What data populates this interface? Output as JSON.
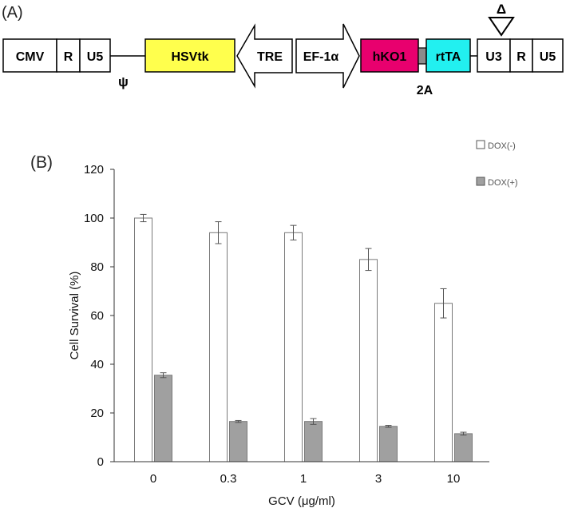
{
  "panel_a": {
    "label": "(A)",
    "segments": {
      "cmv": "CMV",
      "r_left": "R",
      "u5_left": "U5",
      "psi": "ψ",
      "hsvtk": "HSVtk",
      "tre": "TRE",
      "ef1a": "EF-1α",
      "hko1": "hKO1",
      "linker_2a": "2A",
      "rtta": "rtTA",
      "u3": "U3",
      "r_right": "R",
      "u5_right": "U5",
      "delta": "Δ"
    },
    "colors": {
      "hsvtk": "#ffff4d",
      "hko1": "#e8006e",
      "rtta": "#22f0f0",
      "linker": "#8c8c8c"
    }
  },
  "panel_b": {
    "label": "(B)"
  },
  "chart_data": {
    "type": "bar",
    "categories": [
      "0",
      "0.3",
      "1",
      "3",
      "10"
    ],
    "series": [
      {
        "name": "DOX(-)",
        "color": "#ffffff",
        "values": [
          100,
          94,
          94,
          83,
          65
        ],
        "errors": [
          1.5,
          4.5,
          3,
          4.5,
          6
        ]
      },
      {
        "name": "DOX(+)",
        "color": "#a0a0a0",
        "values": [
          35.5,
          16.5,
          16.5,
          14.5,
          11.5
        ],
        "errors": [
          1,
          0.4,
          1.2,
          0.4,
          0.6
        ]
      }
    ],
    "xlabel": "GCV (μg/ml)",
    "ylabel": "Cell Survival  (%)",
    "ylim": [
      0,
      120
    ],
    "yticks": [
      "0",
      "20",
      "40",
      "60",
      "80",
      "100",
      "120"
    ],
    "legend_position": "top-right"
  }
}
